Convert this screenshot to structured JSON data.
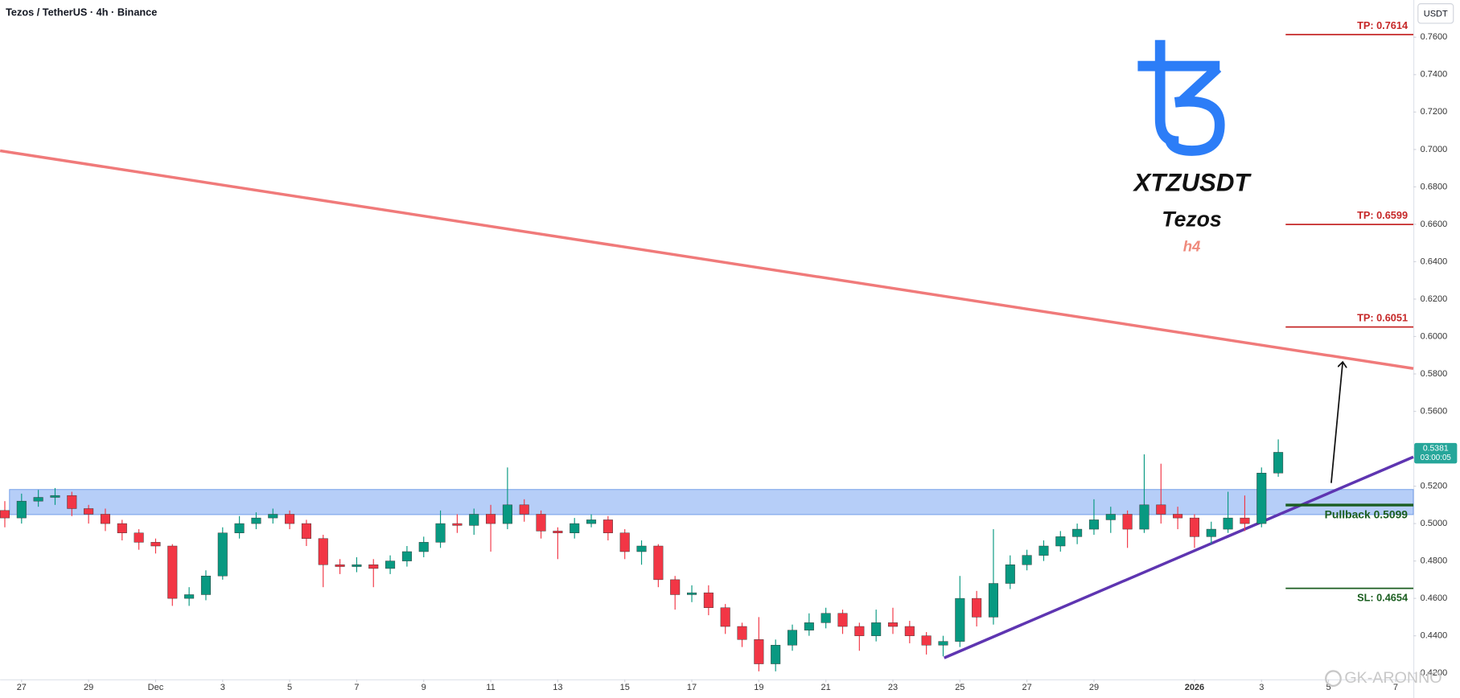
{
  "chart_data": {
    "type": "candlestick",
    "title": "Tezos / TetherUS · 4h · Binance",
    "axis_unit": "USDT",
    "up_color": "#089981",
    "down_color": "#f23645",
    "xlim": [
      -0.64,
      41.53
    ],
    "ylim": [
      0.4167,
      0.7799
    ],
    "xticks": [
      {
        "value": 0,
        "label": "27"
      },
      {
        "value": 2,
        "label": "29"
      },
      {
        "value": 4,
        "label": "Dec"
      },
      {
        "value": 6,
        "label": "3"
      },
      {
        "value": 8,
        "label": "5"
      },
      {
        "value": 10,
        "label": "7"
      },
      {
        "value": 12,
        "label": "9"
      },
      {
        "value": 14,
        "label": "11"
      },
      {
        "value": 16,
        "label": "13"
      },
      {
        "value": 18,
        "label": "15"
      },
      {
        "value": 20,
        "label": "17"
      },
      {
        "value": 22,
        "label": "19"
      },
      {
        "value": 24,
        "label": "21"
      },
      {
        "value": 26,
        "label": "23"
      },
      {
        "value": 28,
        "label": "25"
      },
      {
        "value": 30,
        "label": "27"
      },
      {
        "value": 32,
        "label": "29"
      },
      {
        "value": 35,
        "label": "2026"
      },
      {
        "value": 37,
        "label": "3"
      },
      {
        "value": 39,
        "label": "5"
      },
      {
        "value": 41,
        "label": "7"
      }
    ],
    "yticks": [
      {
        "value": 0.42,
        "label": "0.4200"
      },
      {
        "value": 0.44,
        "label": "0.4400"
      },
      {
        "value": 0.46,
        "label": "0.4600"
      },
      {
        "value": 0.48,
        "label": "0.4800"
      },
      {
        "value": 0.5,
        "label": "0.5000"
      },
      {
        "value": 0.52,
        "label": "0.5200"
      },
      {
        "value": 0.54,
        "label": "0.5400"
      },
      {
        "value": 0.56,
        "label": "0.5600"
      },
      {
        "value": 0.58,
        "label": "0.5800"
      },
      {
        "value": 0.6,
        "label": "0.6000"
      },
      {
        "value": 0.62,
        "label": "0.6200"
      },
      {
        "value": 0.64,
        "label": "0.6400"
      },
      {
        "value": 0.66,
        "label": "0.6600"
      },
      {
        "value": 0.68,
        "label": "0.6800"
      },
      {
        "value": 0.7,
        "label": "0.7000"
      },
      {
        "value": 0.72,
        "label": "0.7200"
      },
      {
        "value": 0.74,
        "label": "0.7400"
      },
      {
        "value": 0.76,
        "label": "0.7600"
      }
    ],
    "x": [
      -0.5,
      0,
      0.5,
      1,
      1.5,
      2,
      2.5,
      3,
      3.5,
      4,
      4.5,
      5,
      5.5,
      6,
      6.5,
      7,
      7.5,
      8,
      8.5,
      9,
      9.5,
      10,
      10.5,
      11,
      11.5,
      12,
      12.5,
      13,
      13.5,
      14,
      14.5,
      15,
      15.5,
      16,
      16.5,
      17,
      17.5,
      18,
      18.5,
      19,
      19.5,
      20,
      20.5,
      21,
      21.5,
      22,
      22.5,
      23,
      23.5,
      24,
      24.5,
      25,
      25.5,
      26,
      26.5,
      27,
      27.5,
      28,
      28.5,
      29,
      29.5,
      30,
      30.5,
      31,
      31.5,
      32,
      32.5,
      33,
      33.5,
      34,
      34.5,
      35,
      35.5,
      36,
      36.5,
      37,
      37.5
    ],
    "open": [
      0.507,
      0.503,
      0.512,
      0.514,
      0.515,
      0.508,
      0.505,
      0.5,
      0.495,
      0.49,
      0.488,
      0.46,
      0.462,
      0.472,
      0.495,
      0.5,
      0.503,
      0.505,
      0.5,
      0.492,
      0.478,
      0.477,
      0.478,
      0.476,
      0.48,
      0.485,
      0.49,
      0.5,
      0.499,
      0.505,
      0.5,
      0.51,
      0.505,
      0.496,
      0.495,
      0.5,
      0.502,
      0.495,
      0.485,
      0.488,
      0.47,
      0.462,
      0.463,
      0.455,
      0.445,
      0.438,
      0.425,
      0.435,
      0.443,
      0.447,
      0.452,
      0.445,
      0.44,
      0.447,
      0.445,
      0.44,
      0.435,
      0.437,
      0.46,
      0.45,
      0.468,
      0.478,
      0.483,
      0.488,
      0.493,
      0.497,
      0.502,
      0.505,
      0.497,
      0.51,
      0.505,
      0.503,
      0.493,
      0.497,
      0.503,
      0.5,
      0.527
    ],
    "high": [
      0.512,
      0.516,
      0.518,
      0.519,
      0.517,
      0.51,
      0.508,
      0.502,
      0.497,
      0.492,
      0.489,
      0.466,
      0.475,
      0.498,
      0.504,
      0.506,
      0.508,
      0.507,
      0.502,
      0.494,
      0.481,
      0.482,
      0.481,
      0.483,
      0.488,
      0.493,
      0.507,
      0.505,
      0.508,
      0.51,
      0.53,
      0.513,
      0.507,
      0.498,
      0.503,
      0.505,
      0.504,
      0.497,
      0.491,
      0.489,
      0.472,
      0.467,
      0.467,
      0.457,
      0.447,
      0.45,
      0.438,
      0.446,
      0.452,
      0.455,
      0.454,
      0.447,
      0.454,
      0.455,
      0.448,
      0.442,
      0.44,
      0.472,
      0.464,
      0.497,
      0.483,
      0.486,
      0.491,
      0.496,
      0.5,
      0.513,
      0.509,
      0.507,
      0.537,
      0.532,
      0.509,
      0.505,
      0.501,
      0.517,
      0.515,
      0.53,
      0.545
    ],
    "low": [
      0.498,
      0.5,
      0.509,
      0.51,
      0.504,
      0.5,
      0.496,
      0.491,
      0.486,
      0.484,
      0.456,
      0.456,
      0.459,
      0.47,
      0.492,
      0.497,
      0.5,
      0.497,
      0.488,
      0.466,
      0.473,
      0.474,
      0.466,
      0.473,
      0.477,
      0.482,
      0.487,
      0.495,
      0.494,
      0.485,
      0.497,
      0.501,
      0.492,
      0.481,
      0.492,
      0.498,
      0.491,
      0.481,
      0.478,
      0.466,
      0.454,
      0.458,
      0.451,
      0.441,
      0.434,
      0.421,
      0.421,
      0.432,
      0.44,
      0.444,
      0.441,
      0.432,
      0.437,
      0.441,
      0.436,
      0.43,
      0.429,
      0.434,
      0.445,
      0.446,
      0.465,
      0.475,
      0.48,
      0.485,
      0.489,
      0.494,
      0.495,
      0.487,
      0.495,
      0.5,
      0.497,
      0.487,
      0.489,
      0.495,
      0.496,
      0.498,
      0.525
    ],
    "close": [
      0.503,
      0.512,
      0.514,
      0.515,
      0.508,
      0.505,
      0.5,
      0.495,
      0.49,
      0.488,
      0.46,
      0.462,
      0.472,
      0.495,
      0.5,
      0.503,
      0.505,
      0.5,
      0.492,
      0.478,
      0.477,
      0.478,
      0.476,
      0.48,
      0.485,
      0.49,
      0.5,
      0.499,
      0.505,
      0.5,
      0.51,
      0.505,
      0.496,
      0.495,
      0.5,
      0.502,
      0.495,
      0.485,
      0.488,
      0.47,
      0.462,
      0.463,
      0.455,
      0.445,
      0.438,
      0.425,
      0.435,
      0.443,
      0.447,
      0.452,
      0.445,
      0.44,
      0.447,
      0.445,
      0.44,
      0.435,
      0.437,
      0.46,
      0.45,
      0.468,
      0.478,
      0.483,
      0.488,
      0.493,
      0.497,
      0.502,
      0.505,
      0.497,
      0.51,
      0.505,
      0.503,
      0.493,
      0.497,
      0.503,
      0.5,
      0.527,
      0.5381
    ],
    "price_tag_time": "03:00:05",
    "price_tag_color": "#26a69a",
    "zone": {
      "low": 0.5048,
      "high": 0.5182,
      "x_start": -0.36,
      "color": "#8fb3f5"
    },
    "trendlines": [
      {
        "points": [
          [
            -0.64,
            0.6993
          ],
          [
            41.53,
            0.5829
          ]
        ],
        "color": "#f07a7a",
        "line_width": 3
      },
      {
        "points": [
          [
            27.53,
            0.4282
          ],
          [
            41.53,
            0.5356
          ]
        ],
        "color": "#5e35b1",
        "line_width": 3
      }
    ],
    "arrow": {
      "from": [
        39.08,
        0.5217
      ],
      "to": [
        39.42,
        0.5859
      ],
      "color": "#111111"
    },
    "levels": [
      {
        "label": "TP: 0.7614",
        "value": 0.7614,
        "x_start": 37.72,
        "color": "#c62828",
        "line_width": 1.5
      },
      {
        "label": "TP: 0.6599",
        "value": 0.6599,
        "x_start": 37.72,
        "color": "#c62828",
        "line_width": 1.5
      },
      {
        "label": "TP: 0.6051",
        "value": 0.6051,
        "x_start": 37.72,
        "color": "#c62828",
        "line_width": 1.5
      },
      {
        "label": "Pullback 0.5099",
        "value": 0.5099,
        "x_start": 37.72,
        "color": "#1b5e20",
        "line_width": 3
      },
      {
        "label": "SL: 0.4654",
        "value": 0.4654,
        "x_start": 37.72,
        "color": "#1b5e20",
        "line_width": 1.5
      }
    ],
    "logo": {
      "symbol": "XTZUSDT",
      "name": "Tezos",
      "timeframe": "h4"
    },
    "watermark": "GK-ARONNO"
  }
}
